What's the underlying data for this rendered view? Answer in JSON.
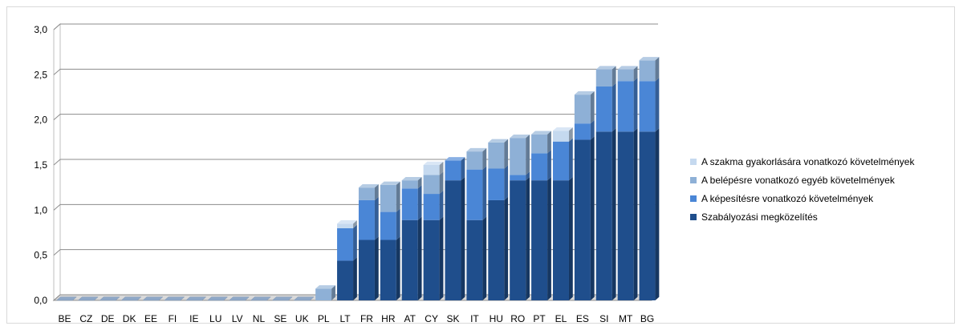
{
  "chart_data": {
    "type": "bar",
    "stacked": true,
    "three_d": true,
    "categories": [
      "BE",
      "CZ",
      "DE",
      "DK",
      "EE",
      "FI",
      "IE",
      "LU",
      "LV",
      "NL",
      "SE",
      "UK",
      "PL",
      "LT",
      "FR",
      "HR",
      "AT",
      "CY",
      "SK",
      "IT",
      "HU",
      "RO",
      "PT",
      "EL",
      "ES",
      "SI",
      "MT",
      "BG"
    ],
    "series": [
      {
        "name": "Szabályozási megközelítés",
        "color": "#1f4e8c",
        "values": [
          0,
          0,
          0,
          0,
          0,
          0,
          0,
          0,
          0,
          0,
          0,
          0,
          0,
          0.44,
          0.67,
          0.67,
          0.89,
          0.89,
          1.33,
          0.89,
          1.11,
          1.33,
          1.33,
          1.33,
          1.78,
          1.87,
          1.87,
          1.87
        ]
      },
      {
        "name": "A képesítésre vonatkozó követelmények",
        "color": "#4a86d6",
        "values": [
          0,
          0,
          0,
          0,
          0,
          0,
          0,
          0,
          0,
          0,
          0,
          0,
          0,
          0.36,
          0.44,
          0.31,
          0.35,
          0.29,
          0.22,
          0.56,
          0.35,
          0.06,
          0.3,
          0.43,
          0.18,
          0.5,
          0.56,
          0.56
        ]
      },
      {
        "name": "A belépésre vonatkozó egyéb követelmények",
        "color": "#8eb0d6",
        "values": [
          0,
          0,
          0,
          0,
          0,
          0,
          0,
          0,
          0,
          0,
          0,
          0,
          0.13,
          0,
          0.14,
          0.3,
          0.09,
          0.21,
          0,
          0.2,
          0.29,
          0.41,
          0.21,
          0,
          0.32,
          0.19,
          0.13,
          0.23
        ]
      },
      {
        "name": "A szakma gyakorlására vonatkozó követelmények",
        "color": "#c5d9ef",
        "values": [
          0,
          0,
          0,
          0,
          0,
          0,
          0,
          0,
          0,
          0,
          0,
          0,
          0,
          0.05,
          0,
          0,
          0,
          0.11,
          0,
          0,
          0,
          0,
          0,
          0.12,
          0,
          0,
          0,
          0
        ]
      }
    ],
    "y_ticks": [
      "0,0",
      "0,5",
      "1,0",
      "1,5",
      "2,0",
      "2,5",
      "3,0"
    ],
    "ylim": [
      0,
      3.0
    ],
    "grid": true,
    "legend_position": "right"
  }
}
